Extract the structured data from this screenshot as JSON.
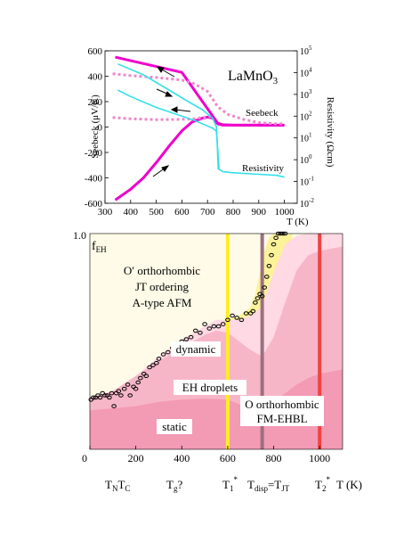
{
  "chart_data": [
    {
      "type": "line",
      "title": "LaMnO3",
      "title_base": "LaMnO",
      "title_sub": "3",
      "xlabel": "T (K)",
      "ylabel": "Seebeck (μV/K)",
      "ylabel_right": "Resistivity (Ωcm)",
      "xlim": [
        300,
        1050
      ],
      "ylim": [
        -600,
        600
      ],
      "ylim_right_log10": [
        -2,
        5
      ],
      "x_ticks": [
        300,
        400,
        500,
        600,
        700,
        800,
        900,
        1000
      ],
      "y_ticks": [
        -600,
        -400,
        -200,
        0,
        200,
        400,
        600
      ],
      "y2_ticks": [
        {
          "mantissa": "10",
          "exp": "-2",
          "value": -2
        },
        {
          "mantissa": "10",
          "exp": "-1",
          "value": -1
        },
        {
          "mantissa": "10",
          "exp": "0",
          "value": 0
        },
        {
          "mantissa": "10",
          "exp": "1",
          "value": 1
        },
        {
          "mantissa": "10",
          "exp": "2",
          "value": 2
        },
        {
          "mantissa": "10",
          "exp": "3",
          "value": 3
        },
        {
          "mantissa": "10",
          "exp": "4",
          "value": 4
        },
        {
          "mantissa": "10",
          "exp": "5",
          "value": 5
        }
      ],
      "annotations": [
        "Seebeck",
        "Resistivity"
      ],
      "colors": {
        "seebeck": "#ee00cc",
        "seebeck_dotted": "#ee88cc",
        "resistivity": "#33e0e8"
      },
      "series": [
        {
          "axis": "left",
          "style": "solid",
          "color": "#ee00cc",
          "x": [
            340,
            400,
            450,
            500,
            550,
            600,
            640,
            680,
            700,
            720,
            740,
            760,
            800,
            900,
            1000
          ],
          "y": [
            -575,
            -490,
            -400,
            -280,
            -150,
            -30,
            40,
            70,
            78,
            70,
            25,
            15,
            15,
            15,
            15
          ]
        },
        {
          "axis": "left",
          "style": "solid",
          "color": "#ee00cc",
          "x": [
            340,
            600,
            740,
            760,
            800,
            900,
            1000
          ],
          "y": [
            550,
            430,
            30,
            18,
            15,
            15,
            15
          ]
        },
        {
          "axis": "left",
          "style": "dotted",
          "color": "#ee88cc",
          "x": [
            330,
            400,
            500,
            600,
            650,
            700,
            740,
            780,
            840,
            900,
            960,
            1000
          ],
          "y": [
            420,
            405,
            390,
            370,
            340,
            280,
            160,
            100,
            60,
            35,
            25,
            25
          ]
        },
        {
          "axis": "left",
          "style": "dotted",
          "color": "#ee88cc",
          "x": [
            330,
            400,
            500,
            600,
            650,
            700,
            720
          ],
          "y": [
            75,
            65,
            58,
            60,
            65,
            80,
            85
          ]
        },
        {
          "axis": "right",
          "style": "solid",
          "color": "#33e0e8",
          "x": [
            350,
            400,
            500,
            600,
            650,
            700,
            720,
            735,
            745,
            760,
            800,
            900,
            970,
            1000
          ],
          "y": [
            3.2,
            2.9,
            2.4,
            2.0,
            1.8,
            1.55,
            1.45,
            1.3,
            -0.45,
            -0.55,
            -0.6,
            -0.67,
            -0.72,
            -0.8
          ]
        },
        {
          "axis": "right",
          "style": "solid",
          "color": "#33e0e8",
          "x": [
            350,
            450,
            550,
            620,
            680,
            720,
            735,
            742
          ],
          "y": [
            4.4,
            3.9,
            3.2,
            2.7,
            2.3,
            1.9,
            1.5,
            -0.45
          ]
        }
      ]
    },
    {
      "type": "area",
      "ylabel": "f",
      "ylabel_sub": "EH",
      "xlim": [
        0,
        1100
      ],
      "ylim": [
        0,
        1.0
      ],
      "y_ticks": [
        {
          "value": 1.0,
          "label": "1.0"
        }
      ],
      "x_ticks": [
        0,
        200,
        400,
        600,
        800,
        1000
      ],
      "x_tick_labels": [
        "0",
        "200",
        "400",
        "600",
        "800",
        "1000"
      ],
      "xunit": "T (K)",
      "temperature_markers": [
        {
          "base": "T",
          "sub1": "N",
          "base2": "T",
          "sub2": "C",
          "x": 130
        },
        {
          "base": "T",
          "sub1": "g",
          "suffix": "?",
          "x": 400
        },
        {
          "base": "T",
          "sub1": "1",
          "sup": "*",
          "x": 600
        },
        {
          "base": "T",
          "sub1": "disp",
          "mid": "=T",
          "sub2": "JT",
          "x": 760
        },
        {
          "base": "T",
          "sub1": "2",
          "sup": "*",
          "x": 1000
        }
      ],
      "region_labels": {
        "orthorhombic_low": [
          "O′ orthorhombic",
          "JT ordering",
          "A-type AFM"
        ],
        "dynamic": "dynamic",
        "droplets": "EH droplets",
        "static": "static",
        "orthorhombic_high": [
          "O orthorhombic",
          "FM-EHBL"
        ]
      },
      "vertical_lines": [
        {
          "x": 600,
          "color": "#ffee22"
        },
        {
          "x": 750,
          "color": "#9a7080"
        },
        {
          "x": 1000,
          "color": "#ee4444"
        }
      ],
      "bands": {
        "static_upper": {
          "x": [
            0,
            100,
            200,
            300,
            400,
            500,
            600,
            650,
            700,
            750,
            800,
            850,
            900,
            950,
            1000,
            1050,
            1100
          ],
          "y": [
            0.18,
            0.19,
            0.2,
            0.22,
            0.23,
            0.235,
            0.23,
            0.21,
            0.2,
            0.2,
            0.22,
            0.26,
            0.3,
            0.33,
            0.35,
            0.36,
            0.37
          ]
        },
        "droplets_upper": {
          "x": [
            0,
            100,
            200,
            300,
            400,
            500,
            550,
            600,
            650,
            700,
            750,
            800,
            850,
            900,
            950,
            1000,
            1050,
            1100
          ],
          "y": [
            0.24,
            0.27,
            0.34,
            0.41,
            0.47,
            0.53,
            0.55,
            0.54,
            0.5,
            0.46,
            0.43,
            0.52,
            0.68,
            0.83,
            0.9,
            0.92,
            0.93,
            0.94
          ]
        },
        "dynamic_upper": {
          "x": [
            0,
            100,
            200,
            300,
            400,
            500,
            550,
            600,
            650,
            700,
            750,
            800,
            850,
            900,
            950,
            1000,
            1050,
            1100
          ],
          "y": [
            0.24,
            0.27,
            0.34,
            0.43,
            0.51,
            0.57,
            0.6,
            0.6,
            0.6,
            0.62,
            0.66,
            0.82,
            0.95,
            0.99,
            1.0,
            1.0,
            1.0,
            1.0
          ]
        },
        "yellow_upper": {
          "x": [
            600,
            650,
            700,
            720,
            740,
            760,
            780,
            800,
            830
          ],
          "y": [
            0.6,
            0.62,
            0.66,
            0.72,
            0.82,
            0.92,
            0.98,
            1.0,
            1.0
          ]
        }
      },
      "points": {
        "x": [
          5,
          15,
          25,
          35,
          45,
          55,
          65,
          75,
          85,
          95,
          105,
          115,
          125,
          135,
          150,
          165,
          175,
          190,
          200,
          210,
          220,
          235,
          245,
          260,
          275,
          290,
          300,
          320,
          340,
          360,
          380,
          400,
          420,
          440,
          460,
          480,
          500,
          520,
          540,
          560,
          580,
          600,
          620,
          640,
          660,
          680,
          700,
          710,
          720,
          730,
          740,
          750,
          760,
          770,
          780,
          790,
          800,
          810,
          820,
          830,
          840,
          850
        ],
        "y": [
          0.23,
          0.24,
          0.24,
          0.25,
          0.24,
          0.26,
          0.25,
          0.25,
          0.24,
          0.26,
          0.2,
          0.26,
          0.27,
          0.25,
          0.28,
          0.3,
          0.25,
          0.29,
          0.28,
          0.31,
          0.33,
          0.35,
          0.34,
          0.38,
          0.39,
          0.4,
          0.42,
          0.44,
          0.45,
          0.47,
          0.46,
          0.5,
          0.51,
          0.52,
          0.55,
          0.54,
          0.58,
          0.56,
          0.57,
          0.57,
          0.58,
          0.6,
          0.62,
          0.61,
          0.6,
          0.63,
          0.63,
          0.64,
          0.68,
          0.7,
          0.72,
          0.71,
          0.75,
          0.8,
          0.85,
          0.9,
          0.95,
          0.98,
          1.0,
          1.0,
          1.0,
          1.0
        ]
      }
    }
  ]
}
